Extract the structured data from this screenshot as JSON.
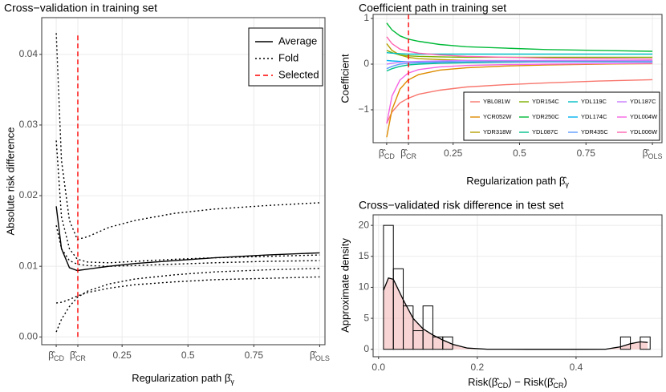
{
  "chart_data": [
    {
      "type": "line",
      "title": "Cross−validation in training set",
      "xlabel": "Regularization path β̂γ",
      "ylabel": "Absolute risk difference",
      "x": [
        0,
        0.02,
        0.05,
        0.08,
        0.12,
        0.2,
        0.3,
        0.45,
        0.6,
        0.8,
        1.0
      ],
      "series": [
        {
          "name": "Average",
          "color": "#000000",
          "style": "solid",
          "values": [
            0.0185,
            0.0125,
            0.0098,
            0.0094,
            0.0096,
            0.01,
            0.0104,
            0.0108,
            0.0112,
            0.0116,
            0.0119
          ]
        },
        {
          "name": "Fold",
          "color": "#000000",
          "style": "dotted",
          "values": [
            [
              0.043,
              0.025,
              0.0165,
              0.0138,
              0.0142,
              0.0155,
              0.0165,
              0.0175,
              0.0181,
              0.0186,
              0.019
            ],
            [
              0.0278,
              0.017,
              0.0125,
              0.011,
              0.0106,
              0.0105,
              0.0107,
              0.011,
              0.0112,
              0.0114,
              0.0116
            ],
            [
              0.0158,
              0.0125,
              0.0108,
              0.0103,
              0.0101,
              0.01,
              0.0101,
              0.0103,
              0.0105,
              0.0107,
              0.0108
            ],
            [
              0.0048,
              0.0049,
              0.0053,
              0.0058,
              0.0063,
              0.0069,
              0.0074,
              0.0078,
              0.0081,
              0.0083,
              0.0085
            ],
            [
              0.0007,
              0.0025,
              0.0043,
              0.0056,
              0.0065,
              0.0075,
              0.0082,
              0.0088,
              0.0092,
              0.0095,
              0.0097
            ]
          ]
        }
      ],
      "selected": {
        "name": "Selected",
        "color": "#ff0000",
        "style": "dashed",
        "x": 0.082,
        "ylim": [
          0,
          0.043
        ]
      },
      "xlim": [
        -0.055,
        1.02
      ],
      "ylim": [
        -0.0011,
        0.0452
      ],
      "xticks": [
        {
          "value": 0,
          "label": "β̂CD"
        },
        {
          "value": 0.082,
          "label": "β̂CR"
        },
        0.25,
        0.5,
        0.75,
        {
          "value": 1,
          "label": "β̂OLS"
        }
      ],
      "yticks": [
        {
          "value": 0,
          "label": "0.00"
        },
        0.01,
        0.02,
        0.03,
        0.04
      ],
      "grid": true,
      "legend": "top-right"
    },
    {
      "type": "line",
      "title": "Coefficient path in training set",
      "xlabel": "Regularization path β̂γ",
      "ylabel": "Coefficient",
      "x": [
        0,
        0.02,
        0.05,
        0.08,
        0.12,
        0.2,
        0.3,
        0.45,
        0.6,
        0.8,
        1.0
      ],
      "series": [
        {
          "name": "YBL081W",
          "color": "#F8766D",
          "values": [
            -1.3,
            -1.05,
            -0.85,
            -0.75,
            -0.66,
            -0.57,
            -0.5,
            -0.45,
            -0.41,
            -0.37,
            -0.34
          ]
        },
        {
          "name": "YCR052W",
          "color": "#DE8C00",
          "values": [
            -1.6,
            -1.0,
            -0.55,
            -0.35,
            -0.23,
            -0.13,
            -0.08,
            -0.04,
            -0.02,
            0.0,
            0.01
          ]
        },
        {
          "name": "YDR318W",
          "color": "#B79F00",
          "values": [
            0.45,
            0.3,
            0.2,
            0.15,
            0.12,
            0.1,
            0.08,
            0.07,
            0.06,
            0.06,
            0.05
          ]
        },
        {
          "name": "YDR154C",
          "color": "#7CAE00",
          "values": [
            0.3,
            0.25,
            0.2,
            0.18,
            0.17,
            0.16,
            0.15,
            0.15,
            0.15,
            0.15,
            0.15
          ]
        },
        {
          "name": "YDR250C",
          "color": "#00BA38",
          "values": [
            0.9,
            0.75,
            0.62,
            0.55,
            0.5,
            0.43,
            0.38,
            0.35,
            0.32,
            0.3,
            0.28
          ]
        },
        {
          "name": "YDL087C",
          "color": "#00C08B",
          "values": [
            -0.15,
            -0.1,
            -0.05,
            -0.02,
            0.0,
            0.02,
            0.03,
            0.04,
            0.05,
            0.05,
            0.05
          ]
        },
        {
          "name": "YDL119C",
          "color": "#00BFC4",
          "values": [
            0.25,
            0.24,
            0.23,
            0.22,
            0.22,
            0.22,
            0.22,
            0.22,
            0.22,
            0.22,
            0.22
          ]
        },
        {
          "name": "YDL174C",
          "color": "#00B4F0",
          "values": [
            0.08,
            0.07,
            0.06,
            0.05,
            0.05,
            0.05,
            0.05,
            0.05,
            0.05,
            0.05,
            0.05
          ]
        },
        {
          "name": "YDR435C",
          "color": "#619CFF",
          "values": [
            -0.1,
            -0.05,
            0.0,
            0.02,
            0.03,
            0.04,
            0.05,
            0.05,
            0.05,
            0.05,
            0.05
          ]
        },
        {
          "name": "YDL187C",
          "color": "#C77CFF",
          "values": [
            0.0,
            0.02,
            0.04,
            0.05,
            0.06,
            0.07,
            0.08,
            0.08,
            0.08,
            0.08,
            0.08
          ]
        },
        {
          "name": "YDL004W",
          "color": "#F564E3",
          "values": [
            -1.3,
            -0.7,
            -0.35,
            -0.2,
            -0.12,
            -0.06,
            -0.03,
            -0.01,
            0.0,
            0.01,
            0.02
          ]
        },
        {
          "name": "YDL006W",
          "color": "#FF64B0",
          "values": [
            0.6,
            0.45,
            0.33,
            0.28,
            0.24,
            0.2,
            0.17,
            0.15,
            0.13,
            0.12,
            0.11
          ]
        }
      ],
      "vline": {
        "color": "#ff0000",
        "style": "dashed",
        "x": 0.082
      },
      "xlim": [
        -0.051,
        1.036
      ],
      "ylim": [
        -1.72,
        1.088
      ],
      "xticks": [
        {
          "value": 0,
          "label": "β̂CD"
        },
        {
          "value": 0.082,
          "label": "β̂CR"
        },
        0.25,
        0.5,
        0.75,
        {
          "value": 1,
          "label": "β̂OLS"
        }
      ],
      "yticks": [
        -1,
        0,
        1
      ],
      "grid": true,
      "legend": "bottom-right"
    },
    {
      "type": "histogram",
      "title": "Cross−validated risk difference in test set",
      "xlabel": "Risk(β̂CD) − Risk(β̂CR)",
      "ylabel": "Approximate density",
      "bins": [
        0.01,
        0.03,
        0.05,
        0.07,
        0.09,
        0.11,
        0.13,
        0.15,
        0.17,
        0.19,
        0.21,
        0.23,
        0.25,
        0.27,
        0.29,
        0.31,
        0.33,
        0.35,
        0.37,
        0.39,
        0.41,
        0.43,
        0.45,
        0.47,
        0.49,
        0.51,
        0.53,
        0.55
      ],
      "values": [
        20,
        13,
        7,
        3,
        7,
        2,
        2,
        0,
        0,
        0,
        0,
        0,
        0,
        0,
        0,
        0,
        0,
        0,
        0,
        0,
        0,
        0,
        0,
        0,
        2,
        0,
        2
      ],
      "bar_color": "#000000",
      "density": {
        "color": "#000000",
        "fill": "#f4b8b8",
        "x": [
          0.01,
          0.02,
          0.03,
          0.05,
          0.07,
          0.09,
          0.11,
          0.13,
          0.15,
          0.18,
          0.22,
          0.3,
          0.4,
          0.46,
          0.49,
          0.51,
          0.53,
          0.545
        ],
        "values": [
          9.5,
          11.5,
          11.3,
          8,
          5,
          3.3,
          2.3,
          1.5,
          0.8,
          0.2,
          0.02,
          0,
          0,
          0.02,
          0.4,
          0.9,
          1.2,
          1.1
        ]
      },
      "xlim": [
        -0.011,
        0.574
      ],
      "ylim": [
        -1.2,
        21.7
      ],
      "xticks": [
        {
          "value": 0,
          "label": "0.0"
        },
        0.2,
        0.4
      ],
      "yticks": [
        0,
        5,
        10,
        15,
        20
      ],
      "grid": true
    }
  ]
}
